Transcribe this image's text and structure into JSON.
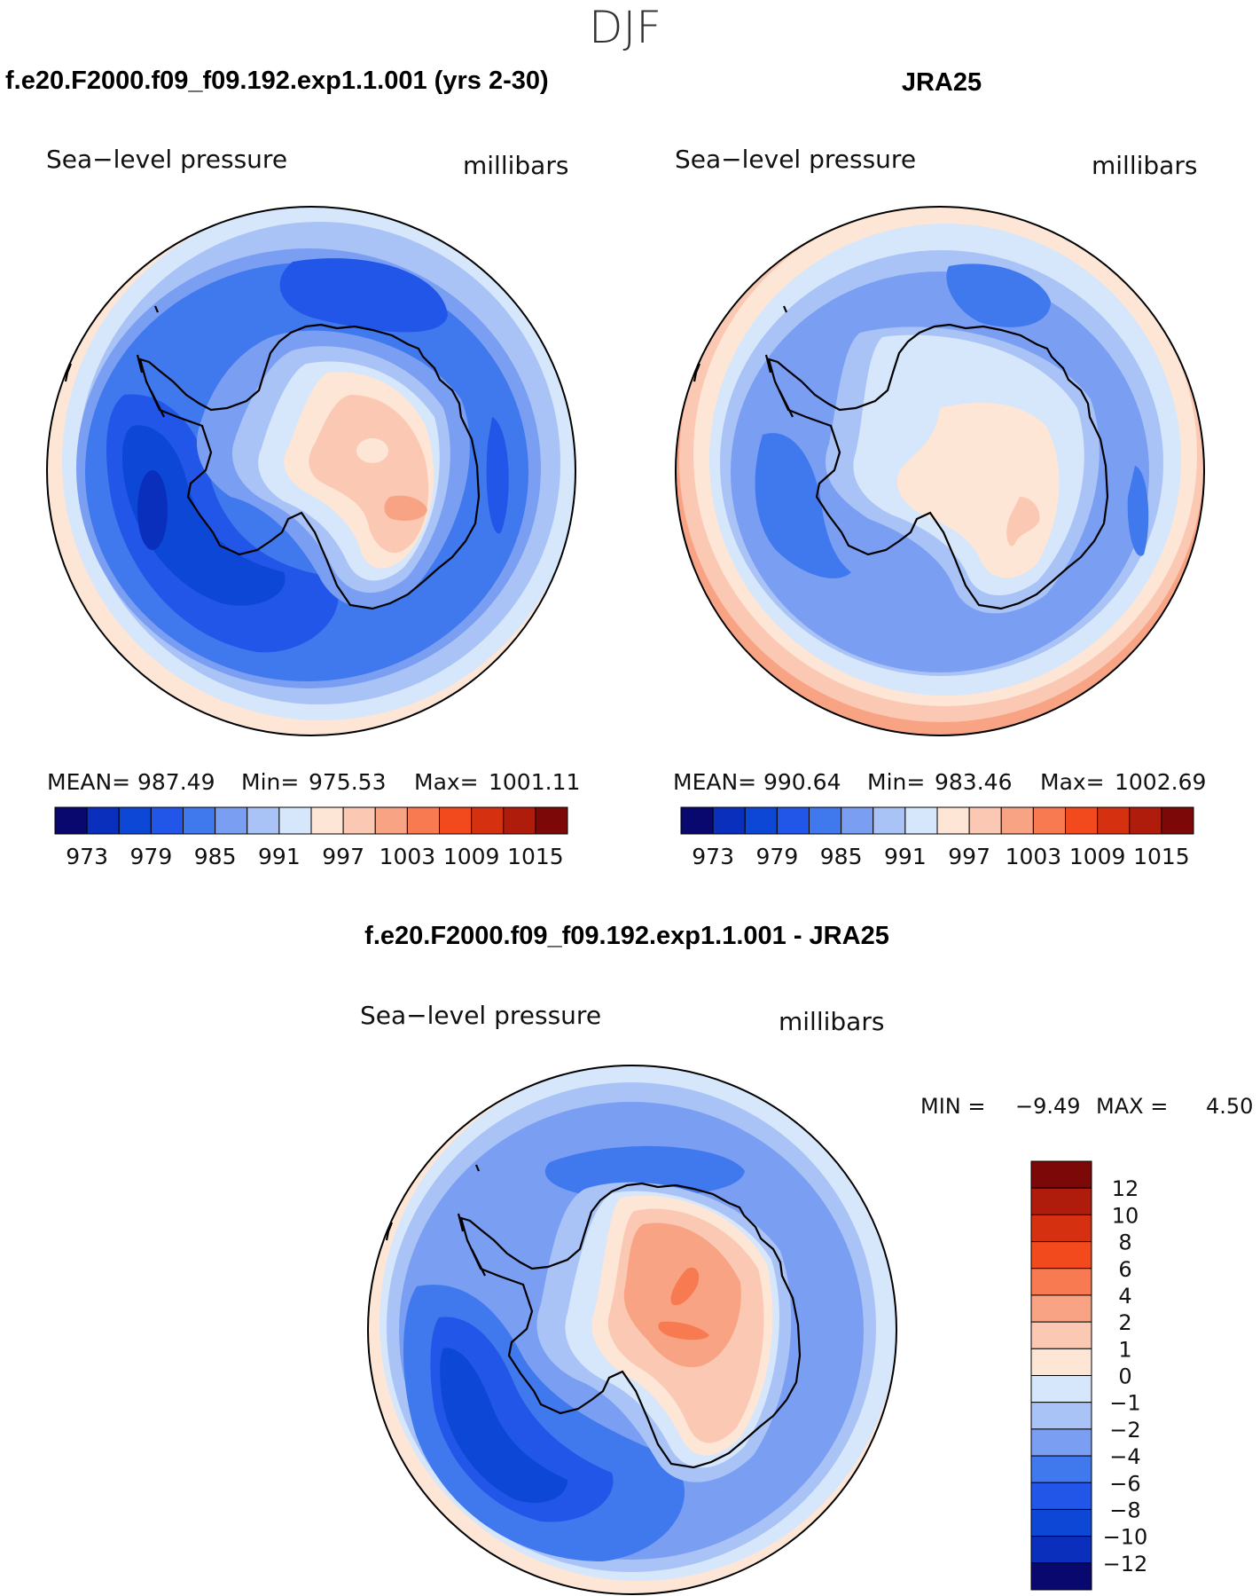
{
  "title": "DJF",
  "colors": {
    "abs_levels": [
      "#08086e",
      "#0a2fbd",
      "#0c47d6",
      "#2156e8",
      "#4078ee",
      "#7a9ef2",
      "#a9c3f7",
      "#d6e6fb",
      "#fde6d6",
      "#fbc9b3",
      "#f9a385",
      "#f77a50",
      "#f24a1c",
      "#d53010",
      "#b01c0c",
      "#7d0808"
    ],
    "diff_levels": [
      "#08086e",
      "#0a2fbd",
      "#0c47d6",
      "#2156e8",
      "#4078ee",
      "#7a9ef2",
      "#a9c3f7",
      "#d6e6fb",
      "#fde6d6",
      "#fbc9b3",
      "#f9a385",
      "#f77a50",
      "#f24a1c",
      "#d53010",
      "#b01c0c",
      "#7d0808"
    ]
  },
  "chart_data": [
    {
      "type": "heatmap",
      "title": "f.e20.F2000.f09_f09.192.exp1.1.001 (yrs 2-30)",
      "subtitle": "Sea−level pressure",
      "units": "millibars",
      "stats": {
        "mean_label": "MEAN=",
        "mean": "987.49",
        "min_label": "Min=",
        "min": "975.53",
        "max_label": "Max=",
        "max": "1001.11"
      },
      "colorbar_ticks": [
        "973",
        "979",
        "985",
        "991",
        "997",
        "1003",
        "1009",
        "1015"
      ]
    },
    {
      "type": "heatmap",
      "title": "JRA25",
      "subtitle": "Sea−level pressure",
      "units": "millibars",
      "stats": {
        "mean_label": "MEAN=",
        "mean": "990.64",
        "min_label": "Min=",
        "min": "983.46",
        "max_label": "Max=",
        "max": "1002.69"
      },
      "colorbar_ticks": [
        "973",
        "979",
        "985",
        "991",
        "997",
        "1003",
        "1009",
        "1015"
      ]
    },
    {
      "type": "heatmap",
      "title": "f.e20.F2000.f09_f09.192.exp1.1.001 - JRA25",
      "subtitle": "Sea−level pressure",
      "units": "millibars",
      "stats": {
        "min_label": "MIN =",
        "min": "−9.49",
        "max_label": "MAX =",
        "max": "4.50"
      },
      "colorbar_ticks": [
        "12",
        "10",
        "8",
        "6",
        "4",
        "2",
        "1",
        "0",
        "−1",
        "−2",
        "−4",
        "−6",
        "−8",
        "−10",
        "−12"
      ]
    }
  ]
}
